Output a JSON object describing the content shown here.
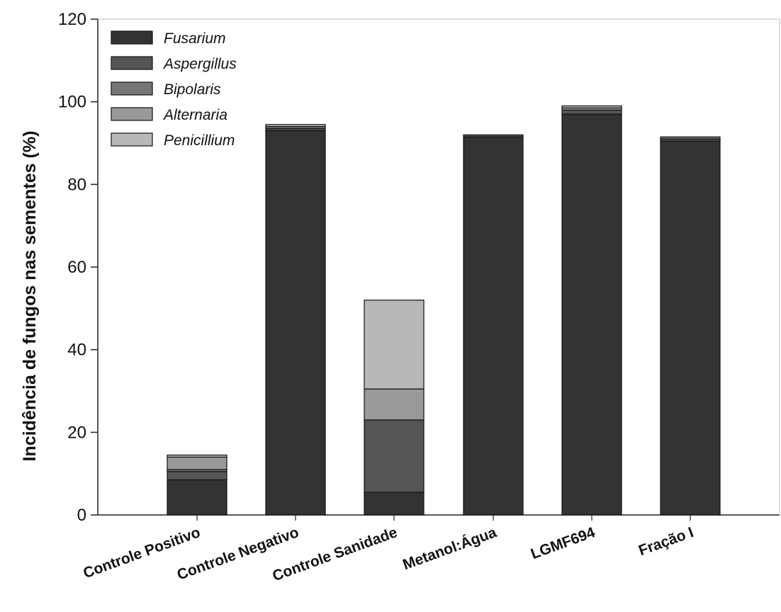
{
  "chart_data": {
    "type": "bar",
    "stacked": true,
    "ylabel": "Incidência de fungos nas sementes (%)",
    "xlabel": "",
    "ylim": [
      0,
      120
    ],
    "yticks": [
      "0",
      "20",
      "40",
      "60",
      "80",
      "100",
      "120"
    ],
    "grid": false,
    "legend_position": "top-left",
    "categories": [
      "Controle Positivo",
      "Controle Negativo",
      "Controle Sanidade",
      "Metanol:Água",
      "LGMF694",
      "Fração I"
    ],
    "series": [
      {
        "name": "Fusarium",
        "color": "#333333",
        "values": [
          8.5,
          93.0,
          5.5,
          91.5,
          97.0,
          90.5
        ]
      },
      {
        "name": "Aspergillus",
        "color": "#555555",
        "values": [
          2.0,
          0.5,
          17.5,
          0.5,
          1.0,
          0.5
        ]
      },
      {
        "name": "Bipolaris",
        "color": "#767676",
        "values": [
          0.5,
          0.5,
          0.0,
          0.0,
          0.0,
          0.5
        ]
      },
      {
        "name": "Alternaria",
        "color": "#999999",
        "values": [
          3.0,
          0.0,
          7.5,
          0.0,
          0.5,
          0.0
        ]
      },
      {
        "name": "Penicillium",
        "color": "#b8b8b8",
        "values": [
          0.5,
          0.5,
          21.5,
          0.0,
          0.5,
          0.0
        ]
      }
    ]
  }
}
